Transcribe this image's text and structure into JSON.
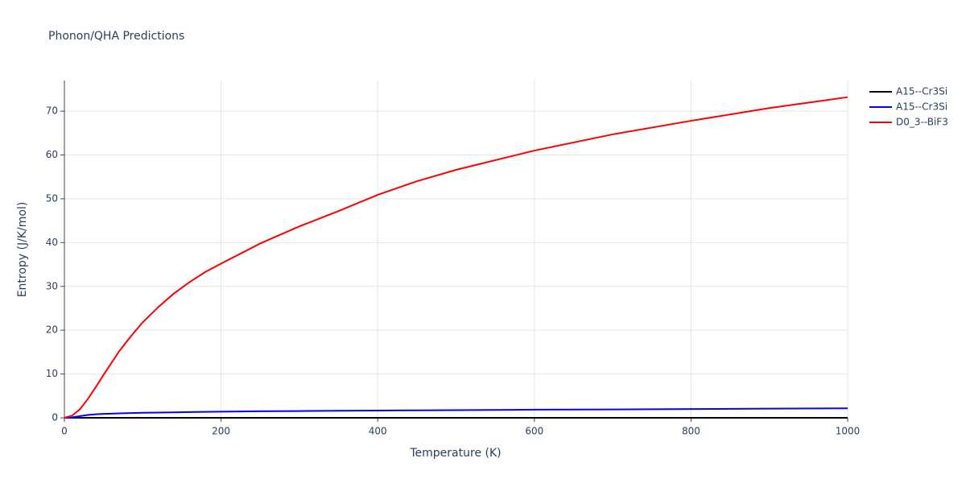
{
  "chart_data": {
    "type": "line",
    "title": "Phonon/QHA Predictions",
    "x_label": "Temperature (K)",
    "y_label": "Entropy (J/K/mol)",
    "x": [
      0,
      10,
      20,
      30,
      40,
      50,
      60,
      70,
      80,
      90,
      100,
      120,
      140,
      160,
      180,
      200,
      250,
      300,
      350,
      400,
      450,
      500,
      600,
      700,
      800,
      900,
      1000
    ],
    "series": [
      {
        "name": "A15--Cr3Si",
        "color": "#000000",
        "values": [
          0,
          0,
          0,
          0,
          0,
          0,
          0,
          0,
          0,
          0,
          0,
          0,
          0,
          0,
          0,
          0,
          0,
          0,
          0,
          0,
          0,
          0,
          0,
          0,
          0,
          0,
          0
        ]
      },
      {
        "name": "A15--Cr3Si",
        "color": "#0000ff",
        "values": [
          0,
          0.1,
          0.4,
          0.65,
          0.8,
          0.9,
          0.95,
          1.0,
          1.05,
          1.1,
          1.15,
          1.2,
          1.25,
          1.3,
          1.35,
          1.4,
          1.5,
          1.55,
          1.6,
          1.65,
          1.7,
          1.75,
          1.85,
          1.9,
          2.0,
          2.1,
          2.15
        ]
      },
      {
        "name": "D0_3--BiF3",
        "color": "#ff0000",
        "values": [
          0,
          0.5,
          2,
          4.3,
          7,
          9.8,
          12.5,
          15.2,
          17.5,
          19.7,
          21.8,
          25.3,
          28.4,
          31,
          33.3,
          35.2,
          39.8,
          43.7,
          47.2,
          50.9,
          54,
          56.6,
          61,
          64.7,
          67.8,
          70.7,
          73.2
        ]
      }
    ],
    "xlim": [
      0,
      1000
    ],
    "xticks": [
      0,
      200,
      400,
      600,
      800,
      1000
    ],
    "ylim": [
      0,
      77
    ],
    "yticks": [
      0,
      10,
      20,
      30,
      40,
      50,
      60,
      70
    ],
    "grid": true,
    "legend": "right"
  }
}
